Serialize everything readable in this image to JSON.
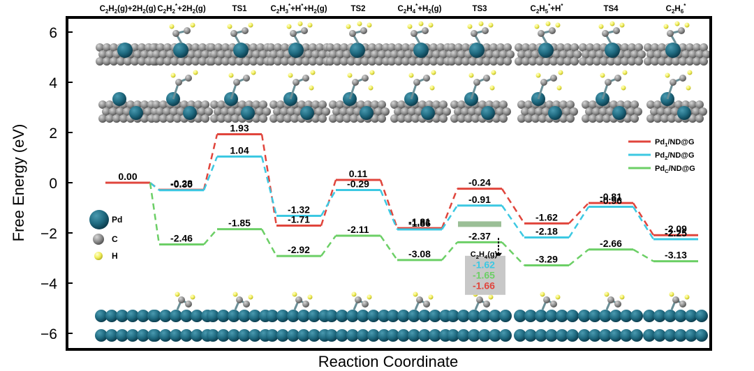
{
  "chart_data": {
    "type": "line",
    "ylabel": "Free Energy (eV)",
    "xlabel": "Reaction Coordinate",
    "ylim": [
      -6.6,
      6.6
    ],
    "yticks": [
      6,
      4,
      2,
      0,
      -2,
      -4,
      -6
    ],
    "grid": false,
    "legend_position": "right",
    "states": [
      {
        "label_html": "C<sub>2</sub>H<sub>2</sub>(g)+2H<sub>2</sub>(g)",
        "label": "C2H2(g)+2H2(g)"
      },
      {
        "label_html": "C<sub>2</sub>H<sub>2</sub><sup>*</sup>+2H<sub>2</sub>(g)",
        "label": "C2H2*+2H2(g)"
      },
      {
        "label_html": "TS1",
        "label": "TS1"
      },
      {
        "label_html": "C<sub>2</sub>H<sub>3</sub><sup>*</sup>+H<sup>*</sup>+H<sub>2</sub>(g)",
        "label": "C2H3*+H*+H2(g)"
      },
      {
        "label_html": "TS2",
        "label": "TS2"
      },
      {
        "label_html": "C<sub>2</sub>H<sub>4</sub><sup>*</sup>+H<sub>2</sub>(g)",
        "label": "C2H4*+H2(g)"
      },
      {
        "label_html": "TS3",
        "label": "TS3"
      },
      {
        "label_html": "C<sub>2</sub>H<sub>5</sub><sup>*</sup>+H<sup>*</sup>",
        "label": "C2H5*+H*"
      },
      {
        "label_html": "TS4",
        "label": "TS4"
      },
      {
        "label_html": "C<sub>2</sub>H<sub>6</sub><sup>*</sup>",
        "label": "C2H6*"
      }
    ],
    "series": [
      {
        "name": "Pd1/ND@G",
        "name_html": "Pd<sub>1</sub>/ND@G",
        "color": "#e0453c",
        "values": [
          0.0,
          -0.28,
          1.93,
          -1.71,
          0.11,
          -1.81,
          -0.24,
          -1.62,
          -0.81,
          -2.09
        ],
        "labels": [
          "0.00",
          "-0.28",
          "1.93",
          "-1.71",
          "0.11",
          "-1.81",
          "-0.24",
          "-1.62",
          "-0.81",
          "-2.09"
        ]
      },
      {
        "name": "Pd2/ND@G",
        "name_html": "Pd<sub>2</sub>/ND@G",
        "color": "#3cc8e2",
        "values": [
          0.0,
          -0.3,
          1.04,
          -1.32,
          -0.29,
          -1.86,
          -0.91,
          -2.18,
          -0.96,
          -2.25
        ],
        "labels": [
          null,
          "-0.30",
          "1.04",
          "-1.32",
          "-0.29",
          "-1.86",
          "-0.91",
          "-2.18",
          "-0.96",
          "-2.25"
        ]
      },
      {
        "name": "PdC/ND@G",
        "name_html": "Pd<sub>C</sub>/ND@G",
        "color": "#6ccf66",
        "values": [
          0.0,
          -2.46,
          -1.85,
          -2.92,
          -2.11,
          -3.08,
          -2.37,
          -3.29,
          -2.66,
          -3.13
        ],
        "labels": [
          null,
          "-2.46",
          "-1.85",
          "-2.92",
          "-2.11",
          "-3.08",
          "-2.37",
          "-3.29",
          "-2.66",
          "-3.13"
        ]
      }
    ],
    "annotation": {
      "label_html": "C<sub>2</sub>H<sub>4</sub>(g)",
      "label": "C2H4(g)",
      "values": [
        {
          "text": "-1.62",
          "color": "#3cc8e2"
        },
        {
          "text": "-1.65",
          "color": "#6ccf66"
        },
        {
          "text": "-1.66",
          "color": "#e0453c"
        }
      ]
    },
    "element_legend": [
      {
        "label": "Pd",
        "color": "#1f6a80"
      },
      {
        "label": "C",
        "color": "#8c8c8c"
      },
      {
        "label": "H",
        "color": "#f1ee5a"
      }
    ]
  }
}
